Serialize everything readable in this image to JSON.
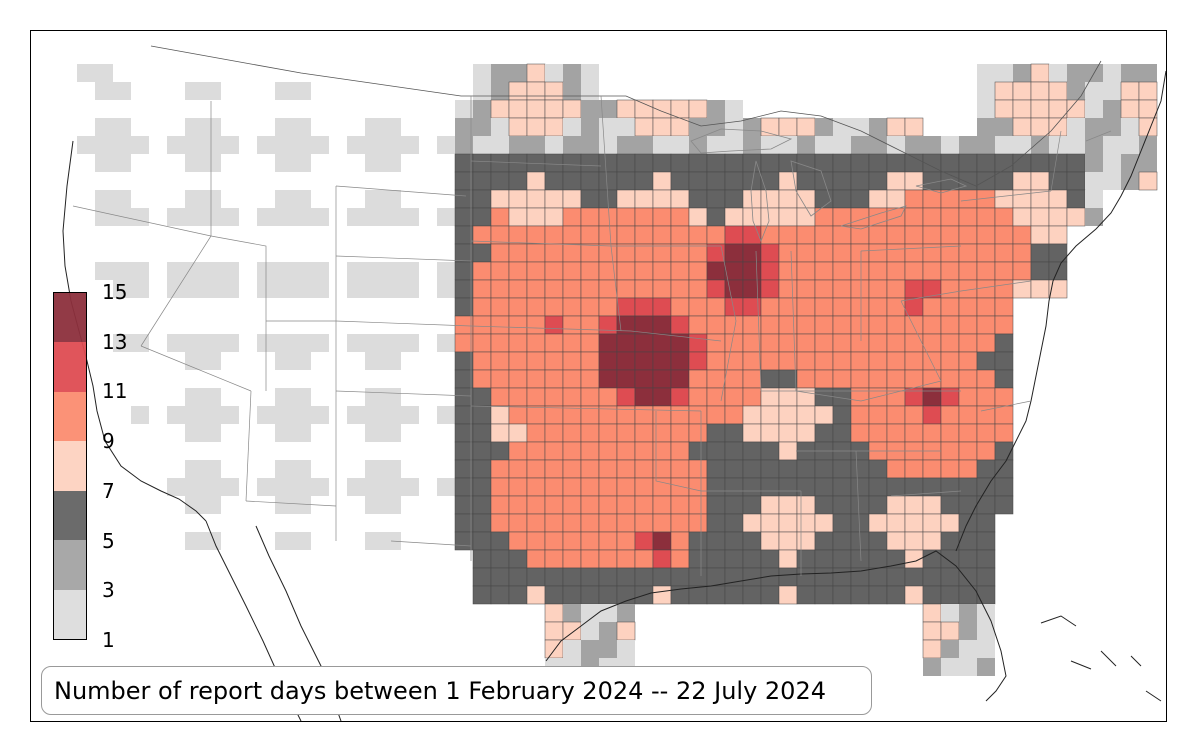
{
  "map": {
    "caption": "Number of report days between 1 February 2024 -- 22 July 2024",
    "region": "Contiguous United States"
  },
  "legend": {
    "ticks": [
      "1",
      "3",
      "5",
      "7",
      "9",
      "11",
      "13",
      "15"
    ],
    "bins": [
      {
        "range": [
          1,
          3
        ],
        "color": "#dcdcdc"
      },
      {
        "range": [
          3,
          5
        ],
        "color": "#a3a3a3"
      },
      {
        "range": [
          5,
          7
        ],
        "color": "#636363"
      },
      {
        "range": [
          7,
          9
        ],
        "color": "#fdd2c0"
      },
      {
        "range": [
          9,
          11
        ],
        "color": "#fb8c70"
      },
      {
        "range": [
          11,
          13
        ],
        "color": "#de4c52"
      },
      {
        "range": [
          13,
          15
        ],
        "color": "#8c2f3c"
      }
    ]
  },
  "colors": {
    "grid_line": "#4a4a4a",
    "coast": "#222222",
    "state_line": "#888888"
  }
}
